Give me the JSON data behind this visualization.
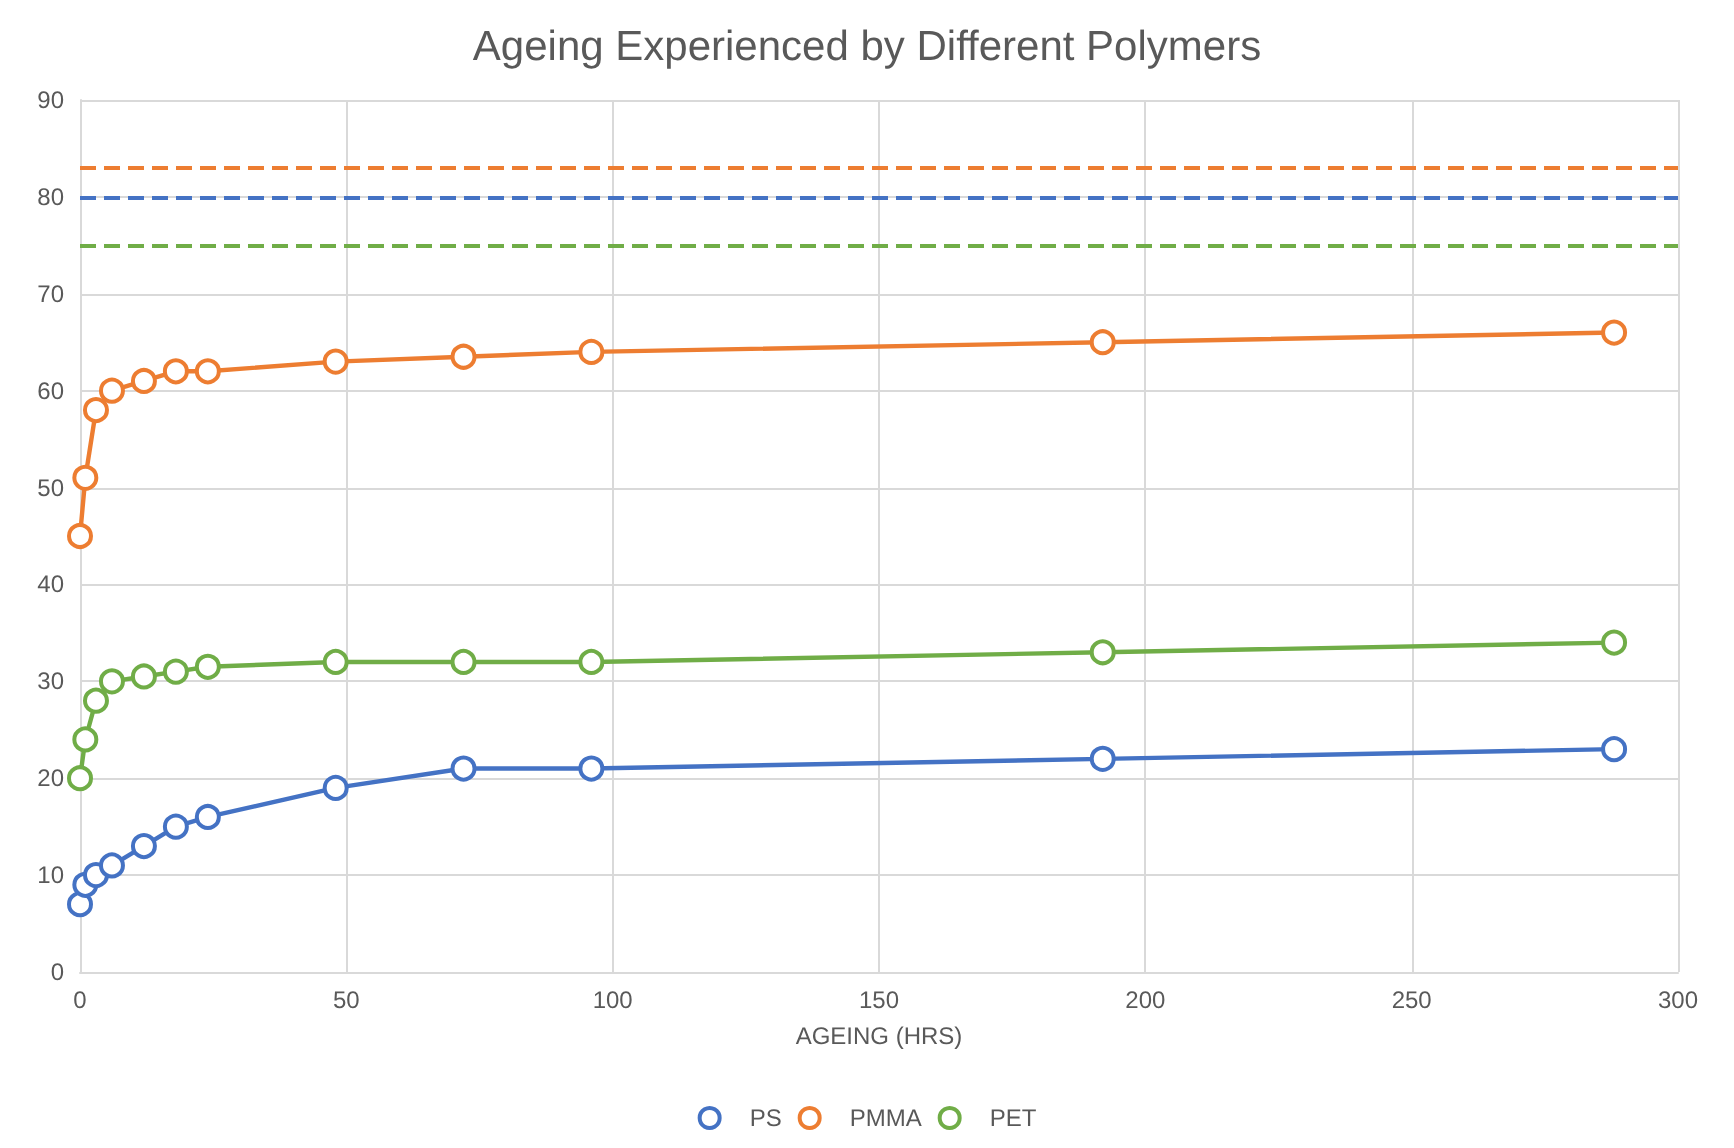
{
  "chart_data": {
    "type": "line",
    "title": "Ageing Experienced by Different Polymers",
    "xlabel": "AGEING (HRS)",
    "x": [
      0,
      1,
      3,
      6,
      12,
      18,
      24,
      48,
      72,
      96,
      192,
      288
    ],
    "series": [
      {
        "name": "PS",
        "color": "#4472c4",
        "values": [
          7,
          9,
          10,
          11,
          13,
          15,
          16,
          19,
          21,
          21,
          22,
          23
        ]
      },
      {
        "name": "PMMA",
        "color": "#ed7d31",
        "values": [
          45,
          51,
          58,
          60,
          61,
          62,
          62,
          63,
          63.5,
          64,
          65,
          66
        ]
      },
      {
        "name": "PET",
        "color": "#70ad47",
        "values": [
          20,
          24,
          28,
          30,
          30.5,
          31,
          31.5,
          32,
          32,
          32,
          33,
          34
        ]
      }
    ],
    "xlim": [
      0,
      300
    ],
    "xticks": [
      0,
      50,
      100,
      150,
      200,
      250,
      300
    ],
    "ylim": [
      0,
      90
    ],
    "yticks": [
      0,
      10,
      20,
      30,
      40,
      50,
      60,
      70,
      80,
      90
    ],
    "ref_lines": [
      {
        "axis": "y",
        "value": 83,
        "color": "#ed7d31",
        "line_style": "dashed"
      },
      {
        "axis": "y",
        "value": 80,
        "color": "#4472c4",
        "line_style": "dashed"
      },
      {
        "axis": "y",
        "value": 75,
        "color": "#70ad47",
        "line_style": "dashed"
      }
    ],
    "grid": true,
    "legend": "bottom",
    "marker": "circle",
    "line_style": "solid"
  }
}
